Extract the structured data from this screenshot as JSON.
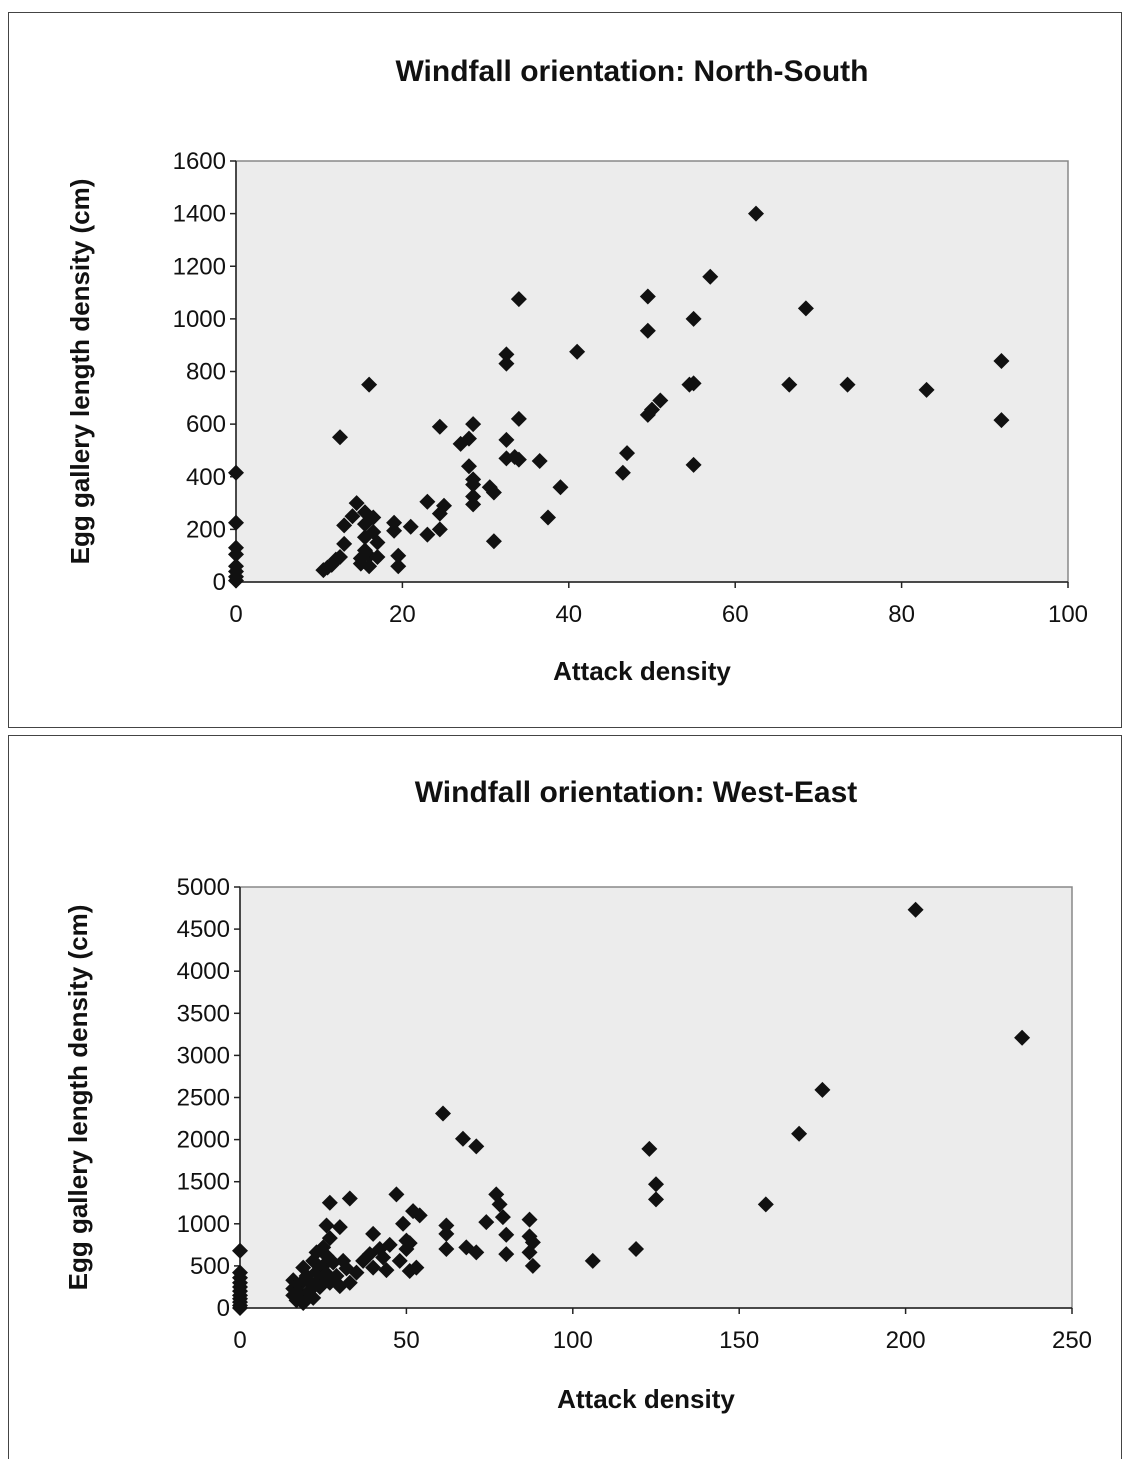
{
  "chart_data": [
    {
      "type": "scatter",
      "title": "Windfall orientation: North-South",
      "xlabel": "Attack density",
      "ylabel": "Egg gallery length density (cm)",
      "xlim": [
        0,
        100
      ],
      "ylim": [
        0,
        1600
      ],
      "xticks": [
        "0",
        "20",
        "40",
        "60",
        "80",
        "100"
      ],
      "yticks": [
        "0",
        "200",
        "400",
        "600",
        "800",
        "1000",
        "1200",
        "1400",
        "1600"
      ],
      "grid": false,
      "legend": "none",
      "marker": "diamond",
      "colors": {
        "marker": "#111111",
        "plot_background": "#ececec"
      },
      "points": [
        [
          0,
          415
        ],
        [
          0,
          225
        ],
        [
          0,
          130
        ],
        [
          0,
          105
        ],
        [
          0,
          60
        ],
        [
          0,
          40
        ],
        [
          0,
          20
        ],
        [
          0,
          5
        ],
        [
          10.5,
          45
        ],
        [
          11,
          55
        ],
        [
          11.5,
          65
        ],
        [
          12,
          85
        ],
        [
          12.5,
          95
        ],
        [
          12.5,
          550
        ],
        [
          13,
          215
        ],
        [
          13,
          145
        ],
        [
          14,
          250
        ],
        [
          14.5,
          300
        ],
        [
          15,
          90
        ],
        [
          15,
          70
        ],
        [
          15.5,
          265
        ],
        [
          15.5,
          220
        ],
        [
          15.5,
          170
        ],
        [
          15.5,
          120
        ],
        [
          16,
          100
        ],
        [
          16,
          60
        ],
        [
          16,
          750
        ],
        [
          16.5,
          245
        ],
        [
          16.5,
          190
        ],
        [
          17,
          150
        ],
        [
          17,
          95
        ],
        [
          19,
          225
        ],
        [
          19,
          195
        ],
        [
          19.5,
          100
        ],
        [
          19.5,
          60
        ],
        [
          21,
          210
        ],
        [
          23,
          305
        ],
        [
          23,
          180
        ],
        [
          24.5,
          590
        ],
        [
          24.5,
          260
        ],
        [
          24.5,
          200
        ],
        [
          25,
          290
        ],
        [
          27,
          525
        ],
        [
          28,
          545
        ],
        [
          28,
          440
        ],
        [
          28.5,
          600
        ],
        [
          28.5,
          390
        ],
        [
          28.5,
          370
        ],
        [
          28.5,
          325
        ],
        [
          28.5,
          295
        ],
        [
          30.5,
          360
        ],
        [
          31,
          155
        ],
        [
          31,
          340
        ],
        [
          32.5,
          865
        ],
        [
          32.5,
          830
        ],
        [
          32.5,
          540
        ],
        [
          32.5,
          470
        ],
        [
          33.5,
          475
        ],
        [
          34,
          620
        ],
        [
          34,
          1075
        ],
        [
          34,
          465
        ],
        [
          36.5,
          460
        ],
        [
          37.5,
          245
        ],
        [
          39,
          360
        ],
        [
          41,
          875
        ],
        [
          46.5,
          415
        ],
        [
          47,
          490
        ],
        [
          49.5,
          955
        ],
        [
          49.5,
          635
        ],
        [
          49.5,
          1085
        ],
        [
          50,
          655
        ],
        [
          51,
          690
        ],
        [
          54.5,
          750
        ],
        [
          55,
          755
        ],
        [
          55,
          1000
        ],
        [
          55,
          445
        ],
        [
          57,
          1160
        ],
        [
          62.5,
          1400
        ],
        [
          66.5,
          750
        ],
        [
          68.5,
          1040
        ],
        [
          73.5,
          750
        ],
        [
          83,
          730
        ],
        [
          92,
          840
        ],
        [
          92,
          615
        ]
      ]
    },
    {
      "type": "scatter",
      "title": "Windfall orientation: West-East",
      "xlabel": "Attack density",
      "ylabel": "Egg gallery length density (cm)",
      "xlim": [
        0,
        250
      ],
      "ylim": [
        0,
        5000
      ],
      "xticks": [
        "0",
        "50",
        "100",
        "150",
        "200",
        "250"
      ],
      "yticks": [
        "0",
        "500",
        "1000",
        "1500",
        "2000",
        "2500",
        "3000",
        "3500",
        "4000",
        "4500",
        "5000"
      ],
      "grid": false,
      "legend": "none",
      "marker": "diamond",
      "colors": {
        "marker": "#111111",
        "plot_background": "#ececec"
      },
      "points": [
        [
          0,
          680
        ],
        [
          0,
          420
        ],
        [
          0,
          360
        ],
        [
          0,
          300
        ],
        [
          0,
          250
        ],
        [
          0,
          200
        ],
        [
          0,
          150
        ],
        [
          0,
          110
        ],
        [
          0,
          70
        ],
        [
          0,
          30
        ],
        [
          0,
          0
        ],
        [
          16,
          330
        ],
        [
          16,
          230
        ],
        [
          16,
          150
        ],
        [
          17,
          90
        ],
        [
          18,
          280
        ],
        [
          18.5,
          160
        ],
        [
          19,
          60
        ],
        [
          19,
          480
        ],
        [
          20,
          380
        ],
        [
          21,
          300
        ],
        [
          21,
          210
        ],
        [
          22,
          560
        ],
        [
          22,
          120
        ],
        [
          23,
          660
        ],
        [
          23,
          430
        ],
        [
          24,
          350
        ],
        [
          24,
          250
        ],
        [
          25,
          720
        ],
        [
          25,
          500
        ],
        [
          26,
          980
        ],
        [
          26,
          620
        ],
        [
          26,
          410
        ],
        [
          27,
          830
        ],
        [
          27,
          1250
        ],
        [
          27,
          300
        ],
        [
          28,
          540
        ],
        [
          29,
          380
        ],
        [
          30,
          960
        ],
        [
          30,
          260
        ],
        [
          31,
          560
        ],
        [
          32,
          470
        ],
        [
          33,
          1300
        ],
        [
          33,
          300
        ],
        [
          35,
          420
        ],
        [
          37,
          560
        ],
        [
          39,
          640
        ],
        [
          40,
          880
        ],
        [
          40,
          480
        ],
        [
          42,
          700
        ],
        [
          43,
          600
        ],
        [
          44,
          450
        ],
        [
          45,
          750
        ],
        [
          47,
          1350
        ],
        [
          48,
          560
        ],
        [
          49,
          1000
        ],
        [
          50,
          800
        ],
        [
          50,
          700
        ],
        [
          51,
          770
        ],
        [
          51,
          440
        ],
        [
          52,
          1150
        ],
        [
          53,
          480
        ],
        [
          54,
          1100
        ],
        [
          61,
          2310
        ],
        [
          62,
          980
        ],
        [
          62,
          880
        ],
        [
          62,
          700
        ],
        [
          67,
          2010
        ],
        [
          68,
          720
        ],
        [
          71,
          1920
        ],
        [
          71,
          660
        ],
        [
          74,
          1020
        ],
        [
          77,
          1350
        ],
        [
          78,
          1230
        ],
        [
          79,
          1080
        ],
        [
          80,
          870
        ],
        [
          80,
          640
        ],
        [
          87,
          1050
        ],
        [
          87,
          850
        ],
        [
          87,
          660
        ],
        [
          88,
          780
        ],
        [
          88,
          500
        ],
        [
          106,
          560
        ],
        [
          119,
          700
        ],
        [
          123,
          1890
        ],
        [
          125,
          1470
        ],
        [
          125,
          1290
        ],
        [
          158,
          1230
        ],
        [
          168,
          2070
        ],
        [
          175,
          2590
        ],
        [
          203,
          4730
        ],
        [
          235,
          3210
        ]
      ]
    }
  ]
}
